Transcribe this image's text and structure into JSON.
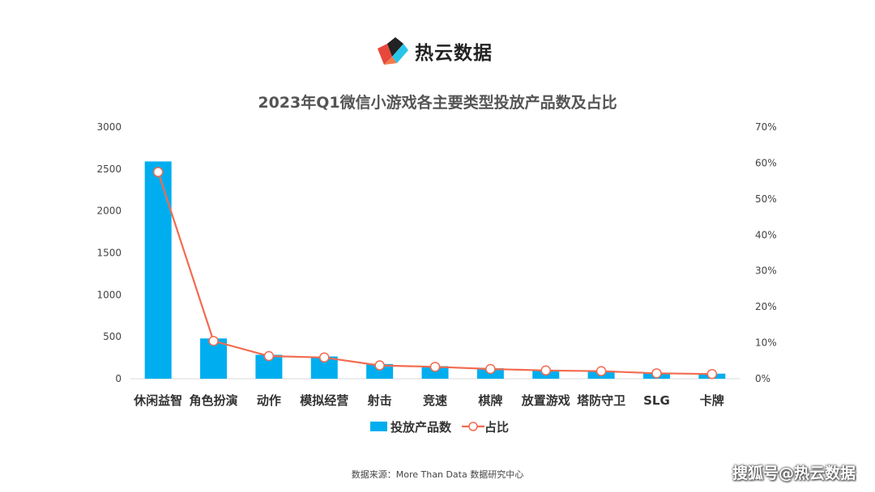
{
  "brand": {
    "name": "热云数据",
    "logo_icon": "reyun-logo-icon"
  },
  "chart_data": {
    "type": "bar",
    "title": "2023年Q1微信小游戏各主要类型投放产品数及占比",
    "categories": [
      "休闲益智",
      "角色扮演",
      "动作",
      "模拟经营",
      "射击",
      "竞速",
      "棋牌",
      "放置游戏",
      "塔防守卫",
      "SLG",
      "卡牌"
    ],
    "series": [
      {
        "name": "投放产品数",
        "type": "bar",
        "axis": "left",
        "color": "#00AEEF",
        "values": [
          2590,
          480,
          285,
          265,
          175,
          150,
          125,
          105,
          95,
          65,
          60
        ]
      },
      {
        "name": "占比",
        "type": "line",
        "axis": "right",
        "color": "#F26B50",
        "values": [
          0.575,
          0.105,
          0.063,
          0.059,
          0.037,
          0.033,
          0.027,
          0.023,
          0.021,
          0.015,
          0.013
        ]
      }
    ],
    "y_left": {
      "min": 0,
      "max": 3000,
      "ticks": [
        "0",
        "500",
        "1000",
        "1500",
        "2000",
        "2500",
        "3000"
      ]
    },
    "y_right": {
      "min": 0,
      "max": 0.7,
      "ticks": [
        "0%",
        "10%",
        "20%",
        "30%",
        "40%",
        "50%",
        "60%",
        "70%"
      ]
    },
    "grid": false,
    "legend_position": "bottom"
  },
  "source_text": "数据来源：More Than Data 数据研究中心",
  "watermark": "搜狐号@热云数据"
}
